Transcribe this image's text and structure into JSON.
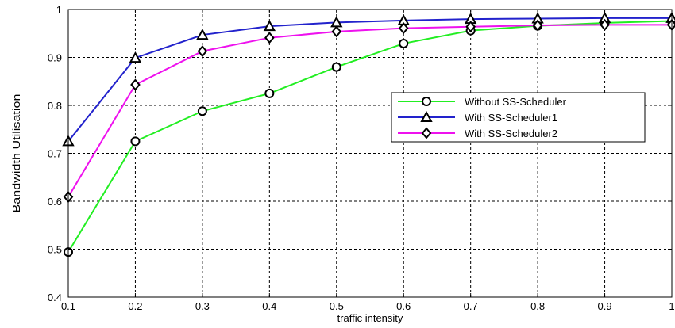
{
  "chart_data": {
    "type": "line",
    "title": "",
    "xlabel": "traffic intensity",
    "ylabel": "Bandwidth Utilisation",
    "x": [
      0.1,
      0.2,
      0.3,
      0.4,
      0.5,
      0.6,
      0.7,
      0.8,
      0.9,
      1.0
    ],
    "xlim": [
      0.1,
      1.0
    ],
    "ylim": [
      0.4,
      1.0
    ],
    "xticks": [
      "0.1",
      "0.2",
      "0.3",
      "0.4",
      "0.5",
      "0.6",
      "0.7",
      "0.8",
      "0.9",
      "1"
    ],
    "yticks": [
      "0.4",
      "0.5",
      "0.6",
      "0.7",
      "0.8",
      "0.9",
      "1"
    ],
    "grid": true,
    "legend_position": "right",
    "series": [
      {
        "name": "Without SS-Scheduler",
        "color": "#22ee22",
        "marker": "circle",
        "values": [
          0.494,
          0.725,
          0.788,
          0.825,
          0.88,
          0.929,
          0.956,
          0.966,
          0.972,
          0.976
        ]
      },
      {
        "name": "With SS-Scheduler1",
        "color": "#2222cc",
        "marker": "triangle",
        "values": [
          0.725,
          0.899,
          0.947,
          0.965,
          0.973,
          0.977,
          0.98,
          0.981,
          0.982,
          0.982
        ]
      },
      {
        "name": "With SS-Scheduler2",
        "color": "#ee11ee",
        "marker": "diamond",
        "values": [
          0.609,
          0.843,
          0.913,
          0.941,
          0.954,
          0.961,
          0.964,
          0.967,
          0.968,
          0.968
        ]
      }
    ]
  }
}
